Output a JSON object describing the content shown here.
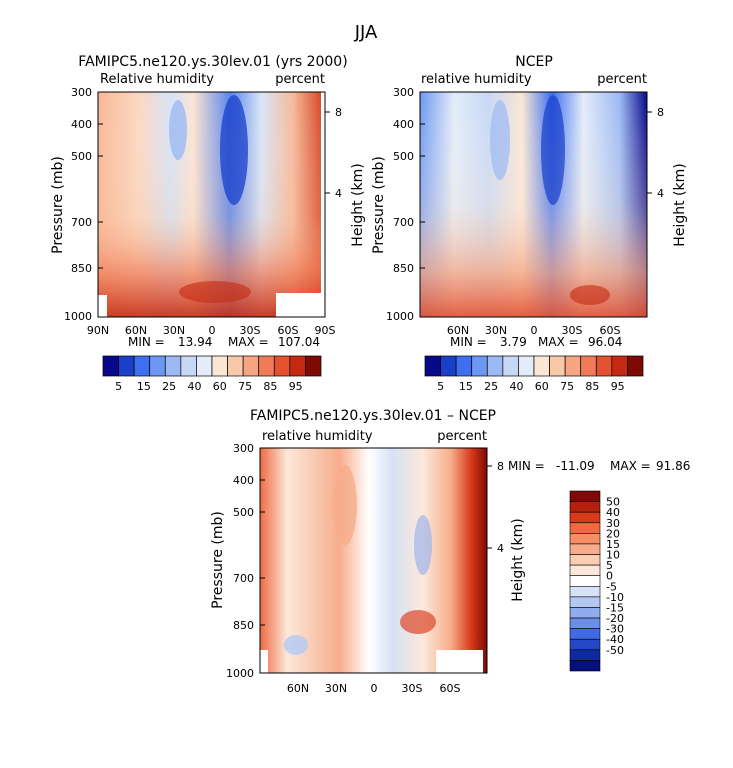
{
  "figure_title": "JJA",
  "chart_data": [
    {
      "type": "heatmap",
      "title": "FAMIPC5.ne120.ys.30lev.01 (yrs 2000)",
      "left_label": "Relative humidity",
      "right_label": "percent",
      "ylabel": "Pressure (mb)",
      "ylabel_right": "Height (km)",
      "y_ticks": [
        "300",
        "400",
        "500",
        "700",
        "850",
        "1000"
      ],
      "y_tick_values": [
        300,
        400,
        500,
        700,
        850,
        1000
      ],
      "height_ticks": [
        "8",
        "4"
      ],
      "height_tick_values": [
        8,
        4
      ],
      "x_ticks": [
        "90N",
        "60N",
        "30N",
        "0",
        "30S",
        "60S",
        "90S"
      ],
      "x_tick_values": [
        90,
        60,
        30,
        0,
        -30,
        -60,
        -90
      ],
      "xlim": [
        90,
        -90
      ],
      "ylim": [
        1000,
        300
      ],
      "min": "13.94",
      "max": "107.04",
      "min_label": "MIN =",
      "max_label": "MAX ="
    },
    {
      "type": "heatmap",
      "title": "NCEP",
      "left_label": "relative humidity",
      "right_label": "percent",
      "ylabel": "Pressure (mb)",
      "ylabel_right": "Height (km)",
      "y_ticks": [
        "300",
        "400",
        "500",
        "700",
        "850",
        "1000"
      ],
      "y_tick_values": [
        300,
        400,
        500,
        700,
        850,
        1000
      ],
      "height_ticks": [
        "8",
        "4"
      ],
      "height_tick_values": [
        8,
        4
      ],
      "x_ticks": [
        "60N",
        "30N",
        "0",
        "30S",
        "60S"
      ],
      "x_tick_values": [
        60,
        30,
        0,
        -30,
        -60
      ],
      "xlim": [
        90,
        -90
      ],
      "ylim": [
        1000,
        300
      ],
      "min": "3.79",
      "max": "96.04",
      "min_label": "MIN =",
      "max_label": "MAX ="
    },
    {
      "type": "heatmap",
      "title": "FAMIPC5.ne120.ys.30lev.01 – NCEP",
      "left_label": "relative humidity",
      "right_label": "percent",
      "ylabel": "Pressure (mb)",
      "ylabel_right": "Height (km)",
      "y_ticks": [
        "300",
        "400",
        "500",
        "700",
        "850",
        "1000"
      ],
      "y_tick_values": [
        300,
        400,
        500,
        700,
        850,
        1000
      ],
      "height_ticks": [
        "8",
        "4"
      ],
      "height_tick_values": [
        8,
        4
      ],
      "x_ticks": [
        "60N",
        "30N",
        "0",
        "30S",
        "60S"
      ],
      "x_tick_values": [
        60,
        30,
        0,
        -30,
        -60
      ],
      "xlim": [
        90,
        -90
      ],
      "ylim": [
        1000,
        300
      ],
      "min": "-11.09",
      "max": "91.86",
      "min_label": "MIN =",
      "max_label": "MAX ="
    }
  ],
  "colorbar_abs": {
    "labels": [
      "5",
      "15",
      "25",
      "40",
      "60",
      "75",
      "85",
      "95"
    ],
    "colors": [
      "#08088a",
      "#1a3fc9",
      "#3d6ff0",
      "#6c97f2",
      "#9cb9f3",
      "#c6d8f5",
      "#e3ecf8",
      "#fbe6d4",
      "#f8c9a8",
      "#f5a581",
      "#f07c57",
      "#e3512f",
      "#c42a12",
      "#7d0a04"
    ]
  },
  "colorbar_diff": {
    "labels": [
      "50",
      "40",
      "30",
      "20",
      "15",
      "10",
      "5",
      "0",
      "-5",
      "-10",
      "-15",
      "-20",
      "-30",
      "-40",
      "-50"
    ],
    "colors": [
      "#7d0a04",
      "#b3200d",
      "#d83a1c",
      "#ef6a42",
      "#f58d66",
      "#f7ad8b",
      "#f9cdb2",
      "#fce8da",
      "#ffffff",
      "#d6e2f6",
      "#b3c9f2",
      "#8fadee",
      "#6a8ee9",
      "#4169e1",
      "#2448c8",
      "#0f2a9e",
      "#05107a"
    ]
  }
}
